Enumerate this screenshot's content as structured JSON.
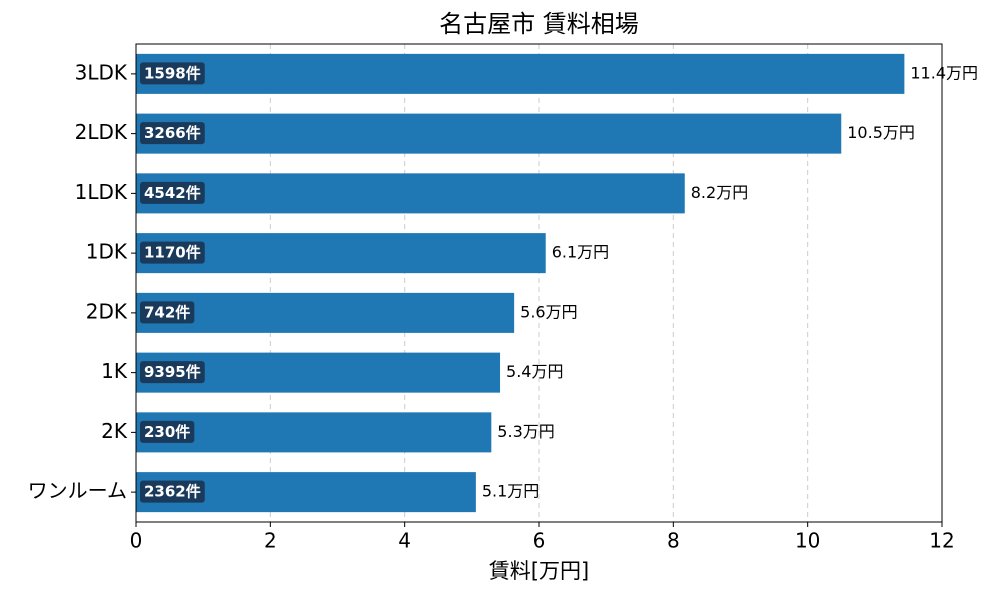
{
  "chart_data": {
    "type": "barh",
    "title": "名古屋市 賃料相場",
    "xlabel": "賃料[万円]",
    "categories": [
      "3LDK",
      "2LDK",
      "1LDK",
      "1DK",
      "2DK",
      "1K",
      "2K",
      "ワンルーム"
    ],
    "values": [
      11.44,
      10.5,
      8.17,
      6.1,
      5.63,
      5.42,
      5.29,
      5.06
    ],
    "value_labels": [
      "11.4万円",
      "10.5万円",
      "8.2万円",
      "6.1万円",
      "5.6万円",
      "5.4万円",
      "5.3万円",
      "5.1万円"
    ],
    "count_labels": [
      "1598件",
      "3266件",
      "4542件",
      "1170件",
      "742件",
      "9395件",
      "230件",
      "2362件"
    ],
    "color": "#1f77b4",
    "badge_color": "#1a3a5c",
    "xlim": [
      0,
      12
    ],
    "xticks": [
      0,
      2,
      4,
      6,
      8,
      10,
      12
    ],
    "grid": true
  }
}
